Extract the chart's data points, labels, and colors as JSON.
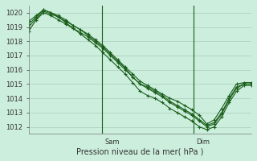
{
  "title": "",
  "xlabel": "Pression niveau de la mer( hPa )",
  "ylabel": "",
  "bg_color": "#cceedd",
  "grid_color": "#aaccbb",
  "line_color": "#1a5e1a",
  "ylim": [
    1011.5,
    1020.5
  ],
  "yticks": [
    1012,
    1013,
    1014,
    1015,
    1016,
    1017,
    1018,
    1019,
    1020
  ],
  "vlines": [
    0.33,
    0.74
  ],
  "vline_labels": [
    "Sam",
    "Dim"
  ],
  "series": [
    [
      1018.7,
      1019.5,
      1020.0,
      1019.8,
      1019.5,
      1019.2,
      1018.9,
      1018.6,
      1018.3,
      1017.9,
      1017.5,
      1017.0,
      1016.5,
      1016.0,
      1015.5,
      1015.0,
      1014.8,
      1014.5,
      1014.2,
      1013.8,
      1013.5,
      1013.2,
      1012.9,
      1012.5,
      1012.1,
      1012.3,
      1013.0,
      1014.0,
      1014.8,
      1015.0,
      1015.0
    ],
    [
      1019.0,
      1019.6,
      1020.1,
      1019.9,
      1019.7,
      1019.4,
      1019.1,
      1018.8,
      1018.5,
      1018.1,
      1017.7,
      1017.2,
      1016.7,
      1016.2,
      1015.7,
      1015.2,
      1014.9,
      1014.6,
      1014.3,
      1014.0,
      1013.8,
      1013.5,
      1013.2,
      1012.8,
      1012.2,
      1012.5,
      1013.3,
      1014.2,
      1015.0,
      1015.1,
      1015.1
    ],
    [
      1019.2,
      1019.7,
      1020.2,
      1020.0,
      1019.8,
      1019.5,
      1019.1,
      1018.8,
      1018.4,
      1018.0,
      1017.6,
      1017.1,
      1016.6,
      1016.1,
      1015.5,
      1015.0,
      1014.7,
      1014.4,
      1014.1,
      1013.7,
      1013.4,
      1013.1,
      1012.8,
      1012.4,
      1012.0,
      1012.2,
      1012.9,
      1013.9,
      1014.7,
      1015.0,
      1015.0
    ],
    [
      1019.4,
      1019.8,
      1020.2,
      1020.0,
      1019.7,
      1019.3,
      1018.9,
      1018.5,
      1018.1,
      1017.7,
      1017.2,
      1016.7,
      1016.2,
      1015.7,
      1015.1,
      1014.5,
      1014.2,
      1014.0,
      1013.7,
      1013.3,
      1013.0,
      1012.7,
      1012.4,
      1012.0,
      1011.8,
      1012.0,
      1012.7,
      1013.7,
      1014.5,
      1014.9,
      1014.9
    ]
  ]
}
